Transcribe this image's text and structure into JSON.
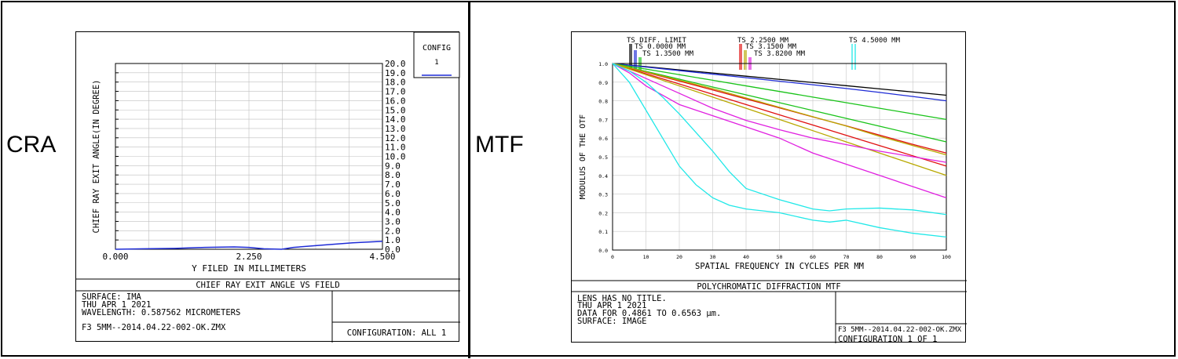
{
  "labels": {
    "cra": "CRA",
    "mtf": "MTF"
  },
  "cra": {
    "config_box": {
      "title": "CONFIG",
      "number": "1"
    },
    "footer": {
      "title": "CHIEF RAY EXIT ANGLE VS FIELD",
      "lines": [
        "SURFACE: IMA",
        "THU APR 1 2021",
        "WAVELENGTH: 0.587562 MICROMETERS"
      ],
      "file": "F3 5MM--2014.04.22-002-OK.ZMX",
      "configuration": "CONFIGURATION: ALL 1"
    }
  },
  "mtf": {
    "legend": [
      {
        "text": "TS DIFF. LIMIT",
        "color": "#000000"
      },
      {
        "text": "TS 0.0000 MM",
        "color": "#1e2bd6"
      },
      {
        "text": "TS 1.3500 MM",
        "color": "#19c319"
      },
      {
        "text": "TS 2.2500 MM",
        "color": "#e01010"
      },
      {
        "text": "TS 3.1500 MM",
        "color": "#b8a800"
      },
      {
        "text": "TS 3.8200 MM",
        "color": "#e020e0"
      },
      {
        "text": "TS 4.5000 MM",
        "color": "#20e8e8"
      }
    ],
    "footer": {
      "title": "POLYCHROMATIC DIFFRACTION MTF",
      "lines": [
        "LENS HAS NO TITLE.",
        "THU APR 1 2021",
        "DATA FOR 0.4861 TO 0.6563 µm.",
        "SURFACE: IMAGE"
      ],
      "file": "F3 5MM--2014.04.22-002-OK.ZMX",
      "configuration": "CONFIGURATION 1 OF 1"
    }
  },
  "chart_data": [
    {
      "type": "line",
      "xlabel": "Y FILED IN MILLIMETERS",
      "ylabel": "CHIEF RAY EXIT ANGLE(IN DEGREE)",
      "xlim": [
        0,
        4.5
      ],
      "ylim": [
        0,
        20
      ],
      "x_ticks": [
        "0.000",
        "2.250",
        "4.500"
      ],
      "y_ticks": [
        "0.0",
        "1.0",
        "2.0",
        "3.0",
        "4.0",
        "5.0",
        "6.0",
        "7.0",
        "8.0",
        "9.0",
        "10.0",
        "11.0",
        "12.0",
        "13.0",
        "14.0",
        "15.0",
        "16.0",
        "17.0",
        "18.0",
        "19.0",
        "20.0"
      ],
      "y_axis_side": "right",
      "grid": true,
      "color": "#1e2bd6",
      "series": [
        {
          "x": [
            0,
            0.5,
            1.0,
            1.5,
            2.0,
            2.25,
            2.5,
            2.8,
            3.0,
            3.5,
            4.0,
            4.5
          ],
          "y": [
            0.0,
            0.05,
            0.1,
            0.2,
            0.25,
            0.2,
            0.05,
            0.0,
            0.2,
            0.45,
            0.7,
            0.85
          ]
        }
      ]
    },
    {
      "type": "line",
      "xlabel": "SPATIAL FREQUENCY IN CYCLES PER MM",
      "ylabel": "MODULUS OF THE OTF",
      "xlim": [
        0,
        100
      ],
      "ylim": [
        0,
        1
      ],
      "x_ticks": [
        "0",
        "10",
        "20",
        "30",
        "40",
        "50",
        "60",
        "70",
        "80",
        "90",
        "100"
      ],
      "y_ticks": [
        "0.0",
        "0.1",
        "0.2",
        "0.3",
        "0.4",
        "0.5",
        "0.6",
        "0.7",
        "0.8",
        "0.9",
        "1.0"
      ],
      "grid": true,
      "series": [
        {
          "name": "TS DIFF. LIMIT",
          "color": "#000000",
          "x": [
            0,
            10,
            20,
            30,
            40,
            50,
            60,
            70,
            80,
            90,
            100
          ],
          "y": [
            1.0,
            0.983,
            0.966,
            0.949,
            0.932,
            0.915,
            0.898,
            0.881,
            0.864,
            0.847,
            0.83
          ]
        },
        {
          "name": "TS 0.0000 MM",
          "color": "#1e2bd6",
          "x": [
            0,
            10,
            20,
            30,
            40,
            50,
            60,
            70,
            80,
            90,
            100
          ],
          "y": [
            1.0,
            0.981,
            0.962,
            0.943,
            0.924,
            0.905,
            0.886,
            0.866,
            0.845,
            0.823,
            0.8
          ]
        },
        {
          "name": "TS 1.3500 MM",
          "color": "#19c319",
          "x": [
            0,
            10,
            20,
            30,
            40,
            50,
            60,
            70,
            80,
            90,
            100
          ],
          "y": [
            1.0,
            0.97,
            0.94,
            0.91,
            0.88,
            0.85,
            0.82,
            0.79,
            0.76,
            0.73,
            0.7
          ]
        },
        {
          "name": "TS 1.3500 MM",
          "color": "#19c319",
          "x": [
            0,
            10,
            20,
            30,
            40,
            50,
            60,
            70,
            80,
            90,
            100
          ],
          "y": [
            1.0,
            0.958,
            0.916,
            0.874,
            0.832,
            0.79,
            0.748,
            0.706,
            0.664,
            0.622,
            0.58
          ]
        },
        {
          "name": "TS 2.2500 MM",
          "color": "#e01010",
          "x": [
            0,
            10,
            20,
            30,
            40,
            50,
            60,
            70,
            80,
            90,
            100
          ],
          "y": [
            1.0,
            0.953,
            0.906,
            0.858,
            0.81,
            0.762,
            0.714,
            0.666,
            0.616,
            0.566,
            0.52
          ]
        },
        {
          "name": "TS 2.2500 MM",
          "color": "#e01010",
          "x": [
            0,
            10,
            20,
            30,
            40,
            50,
            60,
            70,
            80,
            90,
            100
          ],
          "y": [
            1.0,
            0.945,
            0.89,
            0.835,
            0.78,
            0.725,
            0.67,
            0.615,
            0.56,
            0.505,
            0.45
          ]
        },
        {
          "name": "TS 3.1500 MM",
          "color": "#b8a800",
          "x": [
            0,
            10,
            20,
            30,
            40,
            50,
            60,
            70,
            80,
            90,
            100
          ],
          "y": [
            1.0,
            0.955,
            0.91,
            0.865,
            0.815,
            0.765,
            0.715,
            0.665,
            0.61,
            0.56,
            0.51
          ]
        },
        {
          "name": "TS 3.1500 MM",
          "color": "#b8a800",
          "x": [
            0,
            10,
            20,
            30,
            40,
            50,
            60,
            70,
            80,
            90,
            100
          ],
          "y": [
            1.0,
            0.94,
            0.88,
            0.82,
            0.76,
            0.7,
            0.64,
            0.58,
            0.52,
            0.46,
            0.4
          ]
        },
        {
          "name": "TS 3.8200 MM",
          "color": "#e020e0",
          "x": [
            0,
            10,
            20,
            30,
            40,
            50,
            60,
            70,
            80,
            90,
            100
          ],
          "y": [
            1.0,
            0.92,
            0.84,
            0.76,
            0.695,
            0.645,
            0.6,
            0.565,
            0.53,
            0.5,
            0.47
          ]
        },
        {
          "name": "TS 3.8200 MM",
          "color": "#e020e0",
          "x": [
            0,
            5,
            10,
            20,
            30,
            40,
            50,
            60,
            70,
            80,
            90,
            100
          ],
          "y": [
            1.0,
            0.95,
            0.88,
            0.78,
            0.72,
            0.66,
            0.6,
            0.52,
            0.46,
            0.4,
            0.34,
            0.28
          ]
        },
        {
          "name": "TS 4.5000 MM",
          "color": "#20e8e8",
          "x": [
            0,
            5,
            10,
            15,
            20,
            25,
            30,
            35,
            40,
            50,
            60,
            65,
            70,
            80,
            90,
            100
          ],
          "y": [
            1.0,
            0.9,
            0.75,
            0.6,
            0.45,
            0.35,
            0.28,
            0.24,
            0.22,
            0.2,
            0.16,
            0.15,
            0.16,
            0.12,
            0.09,
            0.07
          ]
        },
        {
          "name": "TS 4.5000 MM",
          "color": "#20e8e8",
          "x": [
            0,
            5,
            10,
            15,
            20,
            25,
            30,
            35,
            40,
            50,
            60,
            65,
            70,
            80,
            90,
            100
          ],
          "y": [
            1.0,
            0.96,
            0.9,
            0.82,
            0.73,
            0.63,
            0.53,
            0.42,
            0.33,
            0.27,
            0.22,
            0.21,
            0.22,
            0.225,
            0.215,
            0.19
          ]
        }
      ]
    }
  ]
}
